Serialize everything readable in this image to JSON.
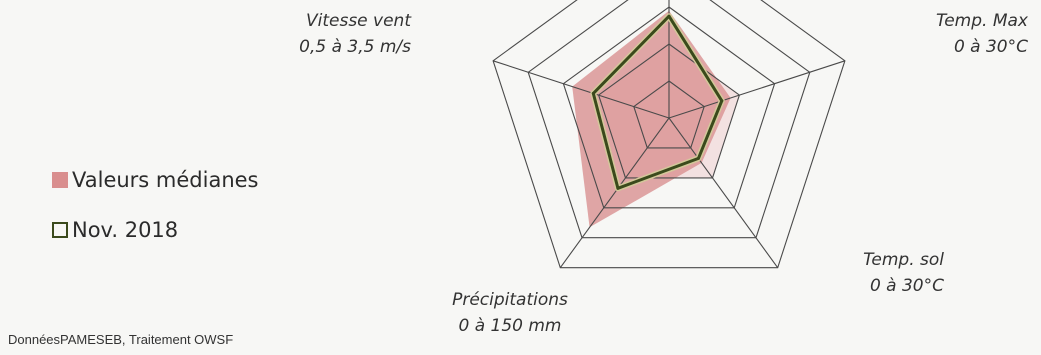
{
  "chart_data": {
    "type": "radar",
    "title": "",
    "axes": [
      {
        "name": "",
        "range": ""
      },
      {
        "name": "Temp. Max",
        "range": "0 à 30°C"
      },
      {
        "name": "Temp. sol",
        "range": "0 à 30°C"
      },
      {
        "name": "Précipitations",
        "range": "0 à 150 mm"
      },
      {
        "name": "Vitesse vent",
        "range": "0,5 à 3,5 m/s"
      }
    ],
    "rings": 5,
    "scale": [
      0,
      1
    ],
    "series": [
      {
        "name": "Valeurs médianes",
        "type": "area",
        "color": "#d98e8e",
        "values": [
          0.58,
          0.35,
          0.3,
          0.73,
          0.55
        ]
      },
      {
        "name": "Nov. 2018",
        "type": "line",
        "color": "#3b4a1c",
        "values": [
          0.55,
          0.3,
          0.27,
          0.47,
          0.43
        ]
      }
    ],
    "legend_position": "left"
  },
  "source_note": "DonnéesPAMESEB, Traitement OWSF"
}
